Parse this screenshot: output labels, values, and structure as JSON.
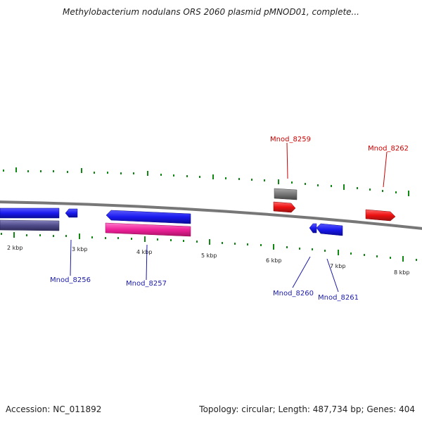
{
  "title": "Methylobacterium nodulans ORS 2060 plasmid pMNOD01, complete...",
  "footer": {
    "accession": "Accession: NC_011892",
    "summary": "Topology: circular; Length: 487,734 bp; Genes: 404"
  },
  "ruler_labels": [
    "2 kbp",
    "3 kbp",
    "4 kbp",
    "5 kbp",
    "6 kbp",
    "7 kbp",
    "8 kbp"
  ],
  "gene_labels": {
    "g8256": "Mnod_8256",
    "g8257": "Mnod_8257",
    "g8259": "Mnod_8259",
    "g8260": "Mnod_8260",
    "g8261": "Mnod_8261",
    "g8262": "Mnod_8262"
  },
  "colors": {
    "forward_gene": "#ee1111",
    "reverse_gene": "#1a1aee",
    "highlight_gene": "#ee2299",
    "label_forward": "#cc0000",
    "label_reverse": "#1a1aaa",
    "tick": "#118811",
    "backbone": "#777777"
  }
}
